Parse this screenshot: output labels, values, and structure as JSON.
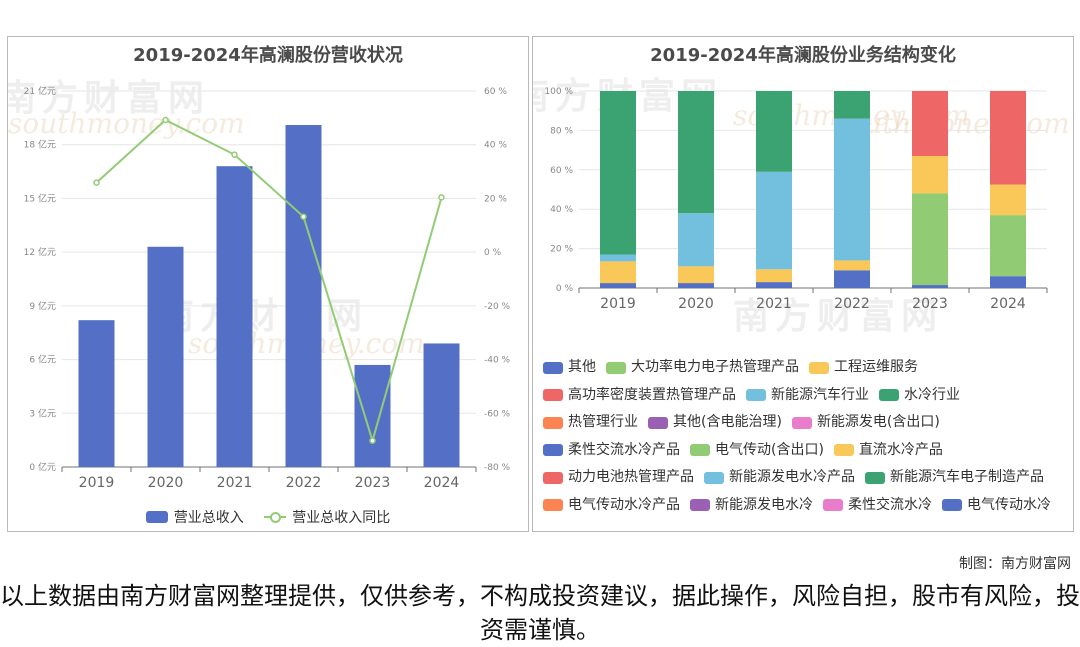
{
  "left_chart": {
    "title": "2019-2024年高澜股份营收状况",
    "legend": {
      "bar": "营业总收入",
      "line": "营业总收入同比"
    },
    "y_left_ticks": [
      "0 亿元",
      "3 亿元",
      "6 亿元",
      "9 亿元",
      "12 亿元",
      "15 亿元",
      "18 亿元",
      "21 亿元"
    ],
    "y_right_ticks": [
      "-80 %",
      "-60 %",
      "-40 %",
      "-20 %",
      "0 %",
      "20 %",
      "40 %",
      "60 %"
    ]
  },
  "right_chart": {
    "title": "2019-2024年高澜股份业务结构变化",
    "y_ticks": [
      "0 %",
      "20 %",
      "40 %",
      "60 %",
      "80 %",
      "100 %"
    ],
    "legend": [
      {
        "label": "其他",
        "color": "#5470c6"
      },
      {
        "label": "大功率电力电子热管理产品",
        "color": "#91cc75"
      },
      {
        "label": "工程运维服务",
        "color": "#fac858"
      },
      {
        "label": "高功率密度装置热管理产品",
        "color": "#ee6666"
      },
      {
        "label": "新能源汽车行业",
        "color": "#73c0de"
      },
      {
        "label": "水冷行业",
        "color": "#3ba272"
      },
      {
        "label": "热管理行业",
        "color": "#fc8452"
      },
      {
        "label": "其他(含电能治理)",
        "color": "#9a60b4"
      },
      {
        "label": "新能源发电(含出口)",
        "color": "#ea7ccc"
      },
      {
        "label": "柔性交流水冷产品",
        "color": "#5470c6"
      },
      {
        "label": "电气传动(含出口)",
        "color": "#91cc75"
      },
      {
        "label": "直流水冷产品",
        "color": "#fac858"
      },
      {
        "label": "动力电池热管理产品",
        "color": "#ee6666"
      },
      {
        "label": "新能源发电水冷产品",
        "color": "#73c0de"
      },
      {
        "label": "新能源汽车电子制造产品",
        "color": "#3ba272"
      },
      {
        "label": "电气传动水冷产品",
        "color": "#fc8452"
      },
      {
        "label": "新能源发电水冷",
        "color": "#9a60b4"
      },
      {
        "label": "柔性交流水冷",
        "color": "#ea7ccc"
      },
      {
        "label": "电气传动水冷",
        "color": "#5470c6"
      }
    ]
  },
  "watermark": {
    "cn": "南方财富网",
    "en": "southmoney.com"
  },
  "credit": "制图：南方财富网",
  "disclaimer": "以上数据由南方财富网整理提供，仅供参考，不构成投资建议，据此操作，风险自担，股市有风险，投资需谨慎。",
  "chart_data": [
    {
      "type": "bar",
      "title": "2019-2024年高澜股份营收状况",
      "categories": [
        "2019",
        "2020",
        "2021",
        "2022",
        "2023",
        "2024"
      ],
      "series": [
        {
          "name": "营业总收入",
          "kind": "bar",
          "axis": "left",
          "unit": "亿元",
          "values": [
            8.2,
            12.3,
            16.8,
            19.1,
            5.7,
            6.9
          ],
          "color": "#5470c6"
        },
        {
          "name": "营业总收入同比",
          "kind": "line",
          "axis": "right",
          "unit": "%",
          "values": [
            25.9,
            49.2,
            36.3,
            13.2,
            -70.2,
            20.4
          ],
          "color": "#91cc75"
        }
      ],
      "ylim_left": [
        0,
        21
      ],
      "ylim_right": [
        -80,
        60
      ],
      "grid": true,
      "legend_position": "bottom"
    },
    {
      "type": "bar",
      "stacked": true,
      "title": "2019-2024年高澜股份业务结构变化",
      "categories": [
        "2019",
        "2020",
        "2021",
        "2022",
        "2023",
        "2024"
      ],
      "ylim": [
        0,
        100
      ],
      "unit": "%",
      "legend_position": "bottom",
      "stacks": [
        [
          {
            "series": "其他",
            "value": 2.5
          },
          {
            "series": "工程运维服务",
            "value": 11
          },
          {
            "series": "新能源汽车行业",
            "value": 3.5
          },
          {
            "series": "水冷行业",
            "value": 83
          }
        ],
        [
          {
            "series": "其他",
            "value": 2.5
          },
          {
            "series": "工程运维服务",
            "value": 8.5
          },
          {
            "series": "新能源汽车行业",
            "value": 27
          },
          {
            "series": "水冷行业",
            "value": 62
          }
        ],
        [
          {
            "series": "其他",
            "value": 3
          },
          {
            "series": "工程运维服务",
            "value": 6.5
          },
          {
            "series": "新能源汽车行业",
            "value": 49.5
          },
          {
            "series": "水冷行业",
            "value": 41
          }
        ],
        [
          {
            "series": "其他",
            "value": 9
          },
          {
            "series": "工程运维服务",
            "value": 5
          },
          {
            "series": "新能源汽车行业",
            "value": 72
          },
          {
            "series": "水冷行业",
            "value": 14
          }
        ],
        [
          {
            "series": "其他",
            "value": 1.5
          },
          {
            "series": "大功率电力电子热管理产品",
            "value": 46.5
          },
          {
            "series": "工程运维服务",
            "value": 19
          },
          {
            "series": "高功率密度装置热管理产品",
            "value": 33
          }
        ],
        [
          {
            "series": "其他",
            "value": 6
          },
          {
            "series": "大功率电力电子热管理产品",
            "value": 31
          },
          {
            "series": "工程运维服务",
            "value": 15.5
          },
          {
            "series": "高功率密度装置热管理产品",
            "value": 47.5
          }
        ]
      ]
    }
  ]
}
